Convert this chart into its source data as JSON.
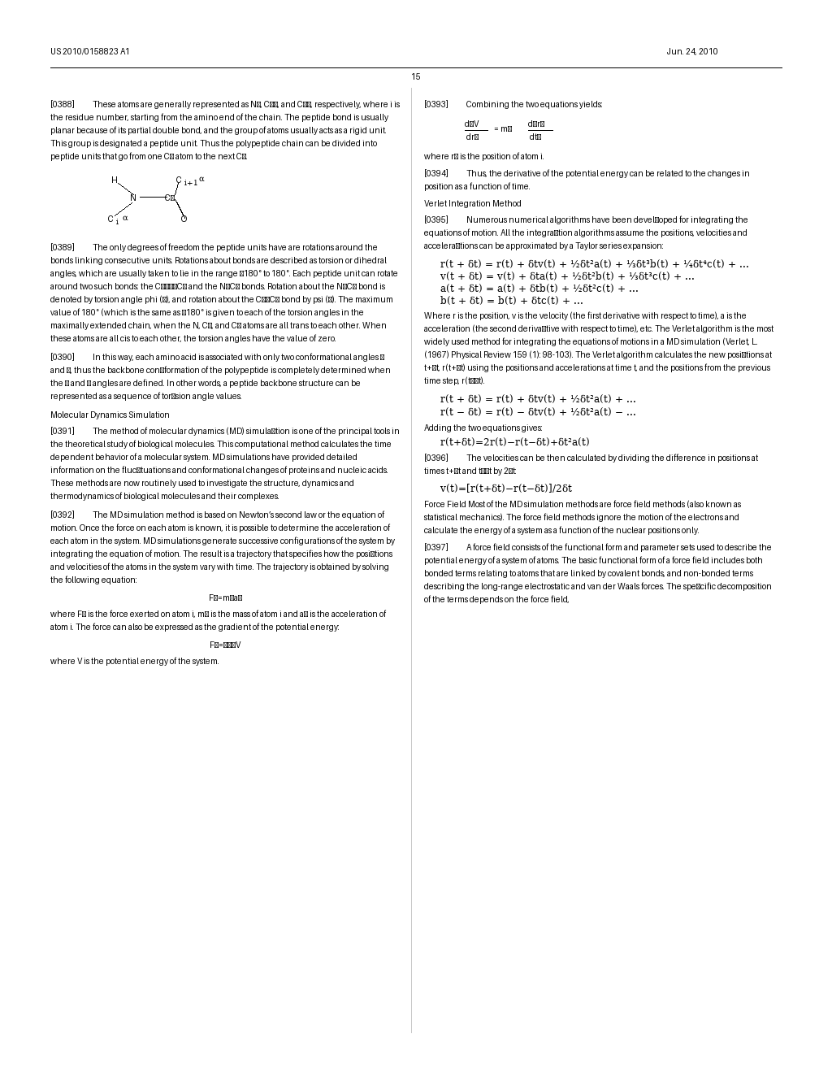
{
  "page_number": "15",
  "header_left": "US 2010/0158823 A1",
  "header_right": "Jun. 24, 2010",
  "background_color": "#ffffff",
  "text_color": "#000000"
}
